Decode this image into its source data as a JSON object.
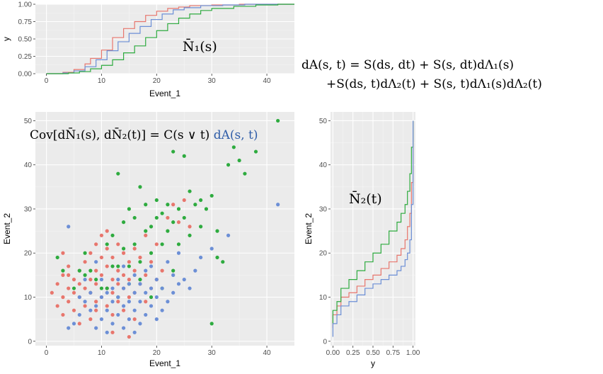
{
  "colors": {
    "red": "#e8766d",
    "green": "#2eab3f",
    "blue": "#6c8fd6",
    "panel": "#ebebeb",
    "grid": "#ffffff"
  },
  "formulas": {
    "n1": "N̄₁(s)",
    "n2": "N̄₂(t)",
    "cov_black": "Cov[dN̄₁(s), dN̄₂(t)] = C(s ∨ t)",
    "cov_blue": "dA(s, t)",
    "dA_line1": "dA(s, t) = S(ds, dt) + S(s, dt)dΛ₁(s)",
    "dA_line2": "+S(ds, t)dΛ₂(t) + S(s, t)dΛ₁(s)dΛ₂(t)"
  },
  "chart_data": [
    {
      "id": "top-ecdf",
      "type": "line",
      "xlabel": "Event_1",
      "ylabel": "y",
      "xlim": [
        -2,
        45
      ],
      "ylim": [
        0,
        1
      ],
      "xticks": [
        0,
        10,
        20,
        30,
        40
      ],
      "yticks": [
        0.0,
        0.25,
        0.5,
        0.75,
        1.0
      ],
      "ytick_labels": [
        "0.00",
        "0.25",
        "0.50",
        "0.75",
        "1.00"
      ],
      "series": [
        {
          "color": "#e8766d",
          "x": [
            0,
            3,
            5,
            7,
            8,
            10,
            12,
            14,
            16,
            18,
            20,
            22,
            24,
            26,
            30,
            35,
            40,
            45
          ],
          "y": [
            0,
            0.02,
            0.06,
            0.14,
            0.22,
            0.34,
            0.52,
            0.65,
            0.75,
            0.84,
            0.9,
            0.94,
            0.96,
            0.98,
            0.99,
            1,
            1,
            1
          ]
        },
        {
          "color": "#6c8fd6",
          "x": [
            0,
            3,
            5,
            7,
            9,
            11,
            13,
            15,
            17,
            19,
            21,
            23,
            25,
            28,
            32,
            36,
            40,
            45
          ],
          "y": [
            0,
            0.01,
            0.04,
            0.1,
            0.2,
            0.33,
            0.46,
            0.58,
            0.68,
            0.78,
            0.86,
            0.92,
            0.95,
            0.98,
            0.99,
            1,
            1,
            1
          ]
        },
        {
          "color": "#2eab3f",
          "x": [
            0,
            4,
            6,
            8,
            10,
            12,
            14,
            16,
            18,
            20,
            22,
            24,
            26,
            28,
            30,
            34,
            38,
            42,
            45
          ],
          "y": [
            0,
            0.01,
            0.03,
            0.07,
            0.12,
            0.2,
            0.3,
            0.4,
            0.52,
            0.62,
            0.72,
            0.8,
            0.86,
            0.91,
            0.94,
            0.97,
            0.99,
            1,
            1
          ]
        }
      ]
    },
    {
      "id": "scatter",
      "type": "scatter",
      "xlabel": "Event_1",
      "ylabel": "Event_2",
      "xlim": [
        -2,
        45
      ],
      "ylim": [
        -1,
        52
      ],
      "xticks": [
        0,
        10,
        20,
        30,
        40
      ],
      "yticks": [
        0,
        10,
        20,
        30,
        40,
        50
      ],
      "series": [
        {
          "color": "#e8766d",
          "points": [
            [
              1,
              11
            ],
            [
              2,
              8
            ],
            [
              2,
              13
            ],
            [
              3,
              15
            ],
            [
              3,
              10
            ],
            [
              3,
              6
            ],
            [
              4,
              12
            ],
            [
              4,
              15
            ],
            [
              4,
              9
            ],
            [
              5,
              11
            ],
            [
              5,
              14
            ],
            [
              5,
              7
            ],
            [
              6,
              10
            ],
            [
              6,
              13
            ],
            [
              6,
              16
            ],
            [
              7,
              8
            ],
            [
              7,
              12
            ],
            [
              7,
              18
            ],
            [
              8,
              11
            ],
            [
              8,
              14
            ],
            [
              8,
              20
            ],
            [
              8,
              5
            ],
            [
              9,
              9
            ],
            [
              9,
              13
            ],
            [
              9,
              16
            ],
            [
              9,
              22
            ],
            [
              10,
              10
            ],
            [
              10,
              15
            ],
            [
              10,
              19
            ],
            [
              10,
              24
            ],
            [
              11,
              8
            ],
            [
              11,
              12
            ],
            [
              11,
              17
            ],
            [
              11,
              21
            ],
            [
              12,
              6
            ],
            [
              12,
              11
            ],
            [
              12,
              14
            ],
            [
              12,
              19
            ],
            [
              13,
              9
            ],
            [
              13,
              13
            ],
            [
              13,
              16
            ],
            [
              13,
              22
            ],
            [
              14,
              7
            ],
            [
              14,
              12
            ],
            [
              14,
              15
            ],
            [
              14,
              20
            ],
            [
              15,
              10
            ],
            [
              15,
              14
            ],
            [
              15,
              18
            ],
            [
              16,
              11
            ],
            [
              16,
              16
            ],
            [
              16,
              21
            ],
            [
              17,
              13
            ],
            [
              17,
              19
            ],
            [
              18,
              9
            ],
            [
              18,
              15
            ],
            [
              18,
              24
            ],
            [
              19,
              12
            ],
            [
              19,
              18
            ],
            [
              20,
              14
            ],
            [
              20,
              22
            ],
            [
              21,
              16
            ],
            [
              22,
              28
            ],
            [
              23,
              31
            ],
            [
              24,
              27
            ],
            [
              25,
              32
            ],
            [
              26,
              26
            ],
            [
              15,
              1
            ],
            [
              12,
              2
            ],
            [
              16,
              5
            ],
            [
              9,
              7
            ],
            [
              6,
              4
            ],
            [
              4,
              17
            ],
            [
              3,
              20
            ],
            [
              11,
              25
            ]
          ]
        },
        {
          "color": "#2eab3f",
          "points": [
            [
              2,
              19
            ],
            [
              3,
              16
            ],
            [
              5,
              12
            ],
            [
              6,
              16
            ],
            [
              7,
              15
            ],
            [
              7,
              20
            ],
            [
              8,
              16
            ],
            [
              9,
              14
            ],
            [
              10,
              12
            ],
            [
              11,
              12
            ],
            [
              11,
              22
            ],
            [
              12,
              17
            ],
            [
              12,
              24
            ],
            [
              13,
              38
            ],
            [
              13,
              10
            ],
            [
              14,
              21
            ],
            [
              14,
              27
            ],
            [
              15,
              30
            ],
            [
              15,
              13
            ],
            [
              16,
              22
            ],
            [
              16,
              28
            ],
            [
              17,
              35
            ],
            [
              17,
              18
            ],
            [
              18,
              25
            ],
            [
              18,
              31
            ],
            [
              19,
              20
            ],
            [
              19,
              26
            ],
            [
              20,
              32
            ],
            [
              20,
              28
            ],
            [
              21,
              22
            ],
            [
              21,
              29
            ],
            [
              22,
              31
            ],
            [
              22,
              25
            ],
            [
              23,
              43
            ],
            [
              23,
              27
            ],
            [
              24,
              30
            ],
            [
              24,
              22
            ],
            [
              25,
              42
            ],
            [
              25,
              28
            ],
            [
              26,
              34
            ],
            [
              26,
              24
            ],
            [
              27,
              31
            ],
            [
              28,
              32
            ],
            [
              28,
              26
            ],
            [
              29,
              30
            ],
            [
              30,
              33
            ],
            [
              30,
              4
            ],
            [
              31,
              25
            ],
            [
              31,
              19
            ],
            [
              32,
              18
            ],
            [
              33,
              40
            ],
            [
              34,
              44
            ],
            [
              35,
              41
            ],
            [
              36,
              38
            ],
            [
              38,
              43
            ],
            [
              42,
              50
            ],
            [
              19,
              10
            ],
            [
              17,
              14
            ],
            [
              15,
              17
            ],
            [
              13,
              17
            ],
            [
              23,
              16
            ],
            [
              21,
              12
            ]
          ]
        },
        {
          "color": "#6c8fd6",
          "points": [
            [
              4,
              26
            ],
            [
              5,
              4
            ],
            [
              4,
              3
            ],
            [
              6,
              6
            ],
            [
              6,
              10
            ],
            [
              7,
              9
            ],
            [
              7,
              14
            ],
            [
              8,
              7
            ],
            [
              8,
              11
            ],
            [
              9,
              3
            ],
            [
              9,
              8
            ],
            [
              10,
              5
            ],
            [
              10,
              10
            ],
            [
              10,
              14
            ],
            [
              11,
              2
            ],
            [
              11,
              7
            ],
            [
              11,
              11
            ],
            [
              12,
              4
            ],
            [
              12,
              9
            ],
            [
              12,
              12
            ],
            [
              13,
              6
            ],
            [
              13,
              10
            ],
            [
              13,
              14
            ],
            [
              14,
              3
            ],
            [
              14,
              8
            ],
            [
              14,
              12
            ],
            [
              15,
              5
            ],
            [
              15,
              9
            ],
            [
              15,
              13
            ],
            [
              16,
              2
            ],
            [
              16,
              7
            ],
            [
              16,
              11
            ],
            [
              16,
              15
            ],
            [
              17,
              4
            ],
            [
              17,
              9
            ],
            [
              17,
              13
            ],
            [
              18,
              6
            ],
            [
              18,
              11
            ],
            [
              18,
              16
            ],
            [
              19,
              8
            ],
            [
              19,
              12
            ],
            [
              19,
              17
            ],
            [
              20,
              5
            ],
            [
              20,
              10
            ],
            [
              20,
              14
            ],
            [
              21,
              7
            ],
            [
              21,
              12
            ],
            [
              22,
              9
            ],
            [
              22,
              18
            ],
            [
              23,
              11
            ],
            [
              23,
              15
            ],
            [
              24,
              13
            ],
            [
              24,
              20
            ],
            [
              25,
              14
            ],
            [
              26,
              12
            ],
            [
              27,
              16
            ],
            [
              28,
              19
            ],
            [
              30,
              21
            ],
            [
              33,
              24
            ],
            [
              42,
              31
            ],
            [
              9,
              18
            ],
            [
              14,
              17
            ]
          ]
        }
      ]
    },
    {
      "id": "right-ecdf",
      "type": "line",
      "xlabel": "y",
      "ylabel": "Event_2",
      "xlim": [
        -0.03,
        1.03
      ],
      "ylim": [
        -1,
        52
      ],
      "xticks": [
        0,
        0.25,
        0.5,
        0.75,
        1
      ],
      "xtick_labels": [
        "0.00",
        "0.25",
        "0.50",
        "0.75",
        "1.00"
      ],
      "yticks": [
        0,
        10,
        20,
        30,
        40,
        50
      ],
      "series": [
        {
          "color": "#e8766d",
          "x": [
            0,
            0.05,
            0.1,
            0.2,
            0.3,
            0.4,
            0.5,
            0.6,
            0.7,
            0.8,
            0.85,
            0.9,
            0.93,
            0.96,
            0.98,
            1,
            1
          ],
          "y": [
            3,
            6,
            8,
            10,
            11,
            12.5,
            14,
            15,
            16.5,
            18,
            19.5,
            21,
            23,
            26,
            29,
            36,
            50
          ]
        },
        {
          "color": "#2eab3f",
          "x": [
            0,
            0.05,
            0.1,
            0.2,
            0.3,
            0.4,
            0.5,
            0.6,
            0.7,
            0.8,
            0.85,
            0.9,
            0.93,
            0.96,
            0.98,
            1,
            1
          ],
          "y": [
            4,
            7,
            9,
            12,
            14,
            16,
            18,
            20,
            22,
            25,
            27,
            29,
            31,
            34,
            38,
            44,
            50
          ]
        },
        {
          "color": "#6c8fd6",
          "x": [
            0,
            0.05,
            0.1,
            0.2,
            0.3,
            0.4,
            0.5,
            0.6,
            0.7,
            0.8,
            0.85,
            0.9,
            0.93,
            0.96,
            0.98,
            1,
            1
          ],
          "y": [
            1,
            4,
            6,
            8,
            9,
            10.5,
            12,
            13,
            14,
            15,
            16,
            17,
            18.5,
            20,
            23,
            31,
            50
          ]
        }
      ]
    }
  ]
}
